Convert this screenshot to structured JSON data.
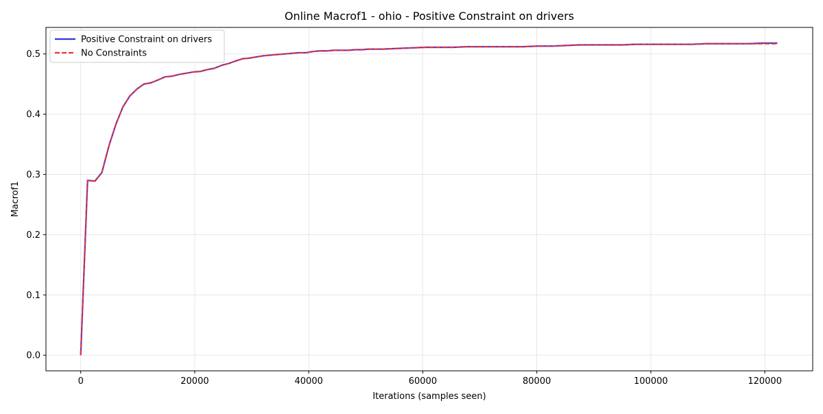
{
  "chart_data": {
    "type": "line",
    "title": "Online Macrof1 - ohio - Positive Constraint on drivers",
    "xlabel": "Iterations (samples seen)",
    "ylabel": "Macrof1",
    "xlim": [
      -6100,
      128400
    ],
    "ylim": [
      -0.026,
      0.544
    ],
    "xticks": [
      0,
      20000,
      40000,
      60000,
      80000,
      100000,
      120000
    ],
    "yticks": [
      0.0,
      0.1,
      0.2,
      0.3,
      0.4,
      0.5
    ],
    "ytick_labels": [
      "0.0",
      "0.1",
      "0.2",
      "0.3",
      "0.4",
      "0.5"
    ],
    "grid": true,
    "legend_position": "upper-left",
    "series": [
      {
        "name": "Positive Constraint on drivers",
        "color": "#3333dd",
        "linestyle": "solid",
        "x": [
          0,
          1200,
          2500,
          3700,
          5000,
          6200,
          7400,
          8600,
          9900,
          11100,
          12300,
          13600,
          14800,
          16000,
          17300,
          18500,
          19700,
          21000,
          22200,
          23400,
          24700,
          25900,
          27100,
          28400,
          29600,
          30800,
          32100,
          33300,
          34500,
          35800,
          37000,
          38200,
          39500,
          40700,
          41900,
          43200,
          44400,
          45600,
          46900,
          48100,
          49300,
          50600,
          51800,
          53000,
          55500,
          58000,
          60400,
          62900,
          65400,
          67800,
          70300,
          72800,
          75200,
          77700,
          80200,
          82600,
          85100,
          87600,
          90000,
          92500,
          95000,
          97400,
          99900,
          102400,
          104800,
          107300,
          109800,
          112200,
          114700,
          117200,
          119600,
          122200
        ],
        "y": [
          0.0,
          0.29,
          0.289,
          0.303,
          0.349,
          0.384,
          0.412,
          0.43,
          0.442,
          0.45,
          0.452,
          0.457,
          0.462,
          0.463,
          0.466,
          0.468,
          0.47,
          0.471,
          0.474,
          0.476,
          0.481,
          0.484,
          0.488,
          0.492,
          0.493,
          0.495,
          0.497,
          0.498,
          0.499,
          0.5,
          0.501,
          0.502,
          0.502,
          0.504,
          0.505,
          0.505,
          0.506,
          0.506,
          0.506,
          0.507,
          0.507,
          0.508,
          0.508,
          0.508,
          0.509,
          0.51,
          0.511,
          0.511,
          0.511,
          0.512,
          0.512,
          0.512,
          0.512,
          0.512,
          0.513,
          0.513,
          0.514,
          0.515,
          0.515,
          0.515,
          0.515,
          0.516,
          0.516,
          0.516,
          0.516,
          0.516,
          0.517,
          0.517,
          0.517,
          0.517,
          0.518,
          0.518
        ]
      },
      {
        "name": "No Constraints",
        "color": "#ee3333",
        "linestyle": "dashed",
        "x": [
          0,
          1200,
          2500,
          3700,
          5000,
          6200,
          7400,
          8600,
          9900,
          11100,
          12300,
          13600,
          14800,
          16000,
          17300,
          18500,
          19700,
          21000,
          22200,
          23400,
          24700,
          25900,
          27100,
          28400,
          29600,
          30800,
          32100,
          33300,
          34500,
          35800,
          37000,
          38200,
          39500,
          40700,
          41900,
          43200,
          44400,
          45600,
          46900,
          48100,
          49300,
          50600,
          51800,
          53000,
          55500,
          58000,
          60400,
          62900,
          65400,
          67800,
          70300,
          72800,
          75200,
          77700,
          80200,
          82600,
          85100,
          87600,
          90000,
          92500,
          95000,
          97400,
          99900,
          102400,
          104800,
          107300,
          109800,
          112200,
          114700,
          117200,
          119600,
          122200
        ],
        "y": [
          0.0,
          0.29,
          0.289,
          0.303,
          0.349,
          0.384,
          0.412,
          0.43,
          0.442,
          0.45,
          0.452,
          0.457,
          0.462,
          0.463,
          0.466,
          0.468,
          0.47,
          0.471,
          0.474,
          0.476,
          0.481,
          0.484,
          0.488,
          0.492,
          0.493,
          0.495,
          0.497,
          0.498,
          0.499,
          0.5,
          0.501,
          0.502,
          0.502,
          0.504,
          0.505,
          0.505,
          0.506,
          0.506,
          0.506,
          0.507,
          0.507,
          0.508,
          0.508,
          0.508,
          0.509,
          0.51,
          0.511,
          0.511,
          0.511,
          0.512,
          0.512,
          0.512,
          0.512,
          0.512,
          0.513,
          0.513,
          0.514,
          0.515,
          0.515,
          0.515,
          0.515,
          0.516,
          0.516,
          0.516,
          0.516,
          0.516,
          0.517,
          0.517,
          0.517,
          0.517,
          0.517,
          0.517
        ]
      }
    ]
  }
}
